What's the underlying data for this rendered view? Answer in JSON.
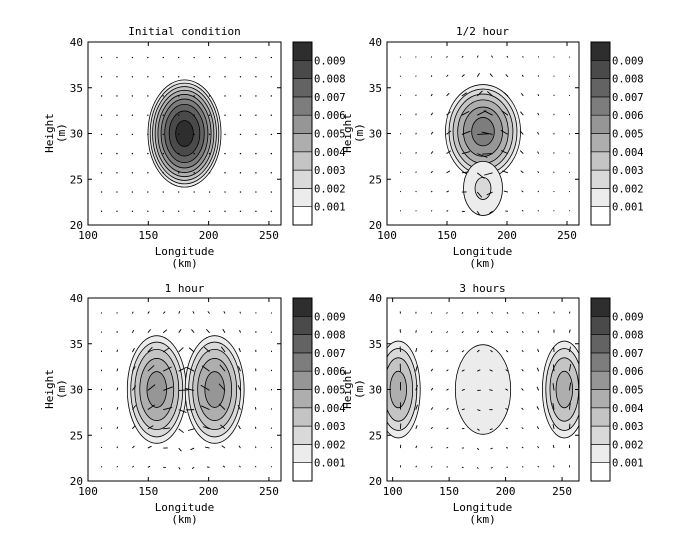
{
  "chart_data": [
    {
      "type": "contour",
      "title": "Initial condition",
      "xlabel": "Longitude (km)",
      "ylabel": "Height (m)",
      "xlim": [
        100,
        260
      ],
      "ylim": [
        20,
        40
      ],
      "xticks": [
        100,
        150,
        200,
        250
      ],
      "yticks": [
        20,
        25,
        30,
        35,
        40
      ],
      "colorbar": {
        "levels": [
          0.001,
          0.002,
          0.003,
          0.004,
          0.005,
          0.006,
          0.007,
          0.008,
          0.009
        ],
        "labels": [
          "0.001",
          "0.002",
          "0.003",
          "0.004",
          "0.005",
          "0.006",
          "0.007",
          "0.008",
          "0.009"
        ]
      },
      "blobs": [
        {
          "x": 180,
          "y": 30,
          "rx": 32,
          "ry": 6.2,
          "peak": 0.0095
        }
      ],
      "vectors": "dots"
    },
    {
      "type": "contour",
      "title": "1/2 hour",
      "xlabel": "Longitude (km)",
      "ylabel": "Height (m)",
      "xlim": [
        100,
        260
      ],
      "ylim": [
        20,
        40
      ],
      "xticks": [
        100,
        150,
        200,
        250
      ],
      "yticks": [
        20,
        25,
        30,
        35,
        40
      ],
      "colorbar": {
        "levels": [
          0.001,
          0.002,
          0.003,
          0.004,
          0.005,
          0.006,
          0.007,
          0.008,
          0.009
        ],
        "labels": [
          "0.001",
          "0.002",
          "0.003",
          "0.004",
          "0.005",
          "0.006",
          "0.007",
          "0.008",
          "0.009"
        ]
      },
      "blobs": [
        {
          "x": 180,
          "y": 30.2,
          "rx": 34,
          "ry": 5.6,
          "peak": 0.0065
        },
        {
          "x": 180,
          "y": 24,
          "rx": 22,
          "ry": 4,
          "peak": 0.0022
        }
      ],
      "vectors": "arrows"
    },
    {
      "type": "contour",
      "title": "1 hour",
      "xlabel": "Longitude (km)",
      "ylabel": "Height (m)",
      "xlim": [
        100,
        260
      ],
      "ylim": [
        20,
        40
      ],
      "xticks": [
        100,
        150,
        200,
        250
      ],
      "yticks": [
        20,
        25,
        30,
        35,
        40
      ],
      "colorbar": {
        "levels": [
          0.001,
          0.002,
          0.003,
          0.004,
          0.005,
          0.006,
          0.007,
          0.008,
          0.009
        ],
        "labels": [
          "0.001",
          "0.002",
          "0.003",
          "0.004",
          "0.005",
          "0.006",
          "0.007",
          "0.008",
          "0.009"
        ]
      },
      "blobs": [
        {
          "x": 157,
          "y": 30,
          "rx": 27,
          "ry": 6.5,
          "peak": 0.0055
        },
        {
          "x": 205,
          "y": 30,
          "rx": 27,
          "ry": 6.5,
          "peak": 0.0055
        }
      ],
      "vectors": "arrows"
    },
    {
      "type": "contour",
      "title": "3 hours",
      "xlabel": "Longitude (km)",
      "ylabel": "Height (m)",
      "xlim": [
        95,
        265
      ],
      "ylim": [
        20,
        40
      ],
      "xticks": [
        100,
        150,
        200,
        250
      ],
      "yticks": [
        20,
        25,
        30,
        35,
        40
      ],
      "colorbar": {
        "levels": [
          0.001,
          0.002,
          0.003,
          0.004,
          0.005,
          0.006,
          0.007,
          0.008,
          0.009
        ],
        "labels": [
          "0.001",
          "0.002",
          "0.003",
          "0.004",
          "0.005",
          "0.006",
          "0.007",
          "0.008",
          "0.009"
        ]
      },
      "blobs": [
        {
          "x": 105,
          "y": 30,
          "rx": 22,
          "ry": 6,
          "peak": 0.0045
        },
        {
          "x": 252,
          "y": 30,
          "rx": 22,
          "ry": 6,
          "peak": 0.0045
        },
        {
          "x": 180,
          "y": 30,
          "rx": 40,
          "ry": 8,
          "peak": 0.0016
        }
      ],
      "vectors": "arrows"
    }
  ],
  "colors": {
    "level_fills": [
      "#ffffff",
      "#ececec",
      "#d9d9d9",
      "#c4c4c4",
      "#aeaeae",
      "#969696",
      "#7d7d7d",
      "#636363",
      "#4a4a4a",
      "#2e2e2e"
    ],
    "line": "#000000"
  }
}
